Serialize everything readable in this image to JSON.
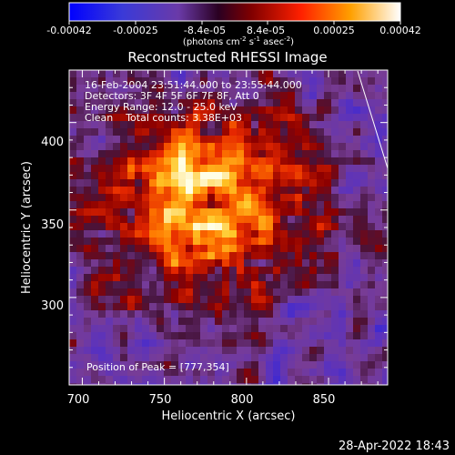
{
  "colorbar": {
    "ticks": [
      "-0.00042",
      "-0.00025",
      "-8.4e-05",
      "8.4e-05",
      "0.00025",
      "0.00042"
    ],
    "unit_main": "(photons cm",
    "unit_exp1": "-2",
    "unit_mid": " s",
    "unit_exp2": "-1",
    "unit_tail": " asec",
    "unit_exp3": "-2",
    "unit_close": ")"
  },
  "title": "Reconstructed RHESSI Image",
  "annotations": {
    "time": "16-Feb-2004 23:51:44.000 to 23:55:44.000",
    "detectors": "Detectors: 3F 4F 5F 6F 7F 8F, Att 0",
    "energy": "Energy Range: 12.0 - 25.0 keV",
    "clean": "Clean    Total counts: 3.38E+03",
    "peak": "Position of Peak = [777,354]"
  },
  "axes": {
    "xlabel": "Heliocentric X (arcsec)",
    "ylabel": "Heliocentric Y (arcsec)",
    "xticks": [
      "700",
      "750",
      "800",
      "850"
    ],
    "yticks": [
      "300",
      "350",
      "400"
    ]
  },
  "footer": {
    "timestamp": "28-Apr-2022 18:43"
  },
  "image": {
    "seed": 12345,
    "x_range": [
      692,
      886
    ],
    "y_range": [
      250,
      430
    ],
    "peak": [
      777,
      354
    ],
    "colors": {
      "low": "#1a1aff",
      "mid": "#8040a0",
      "high": "#ff2000",
      "max": "#ffffff"
    }
  }
}
